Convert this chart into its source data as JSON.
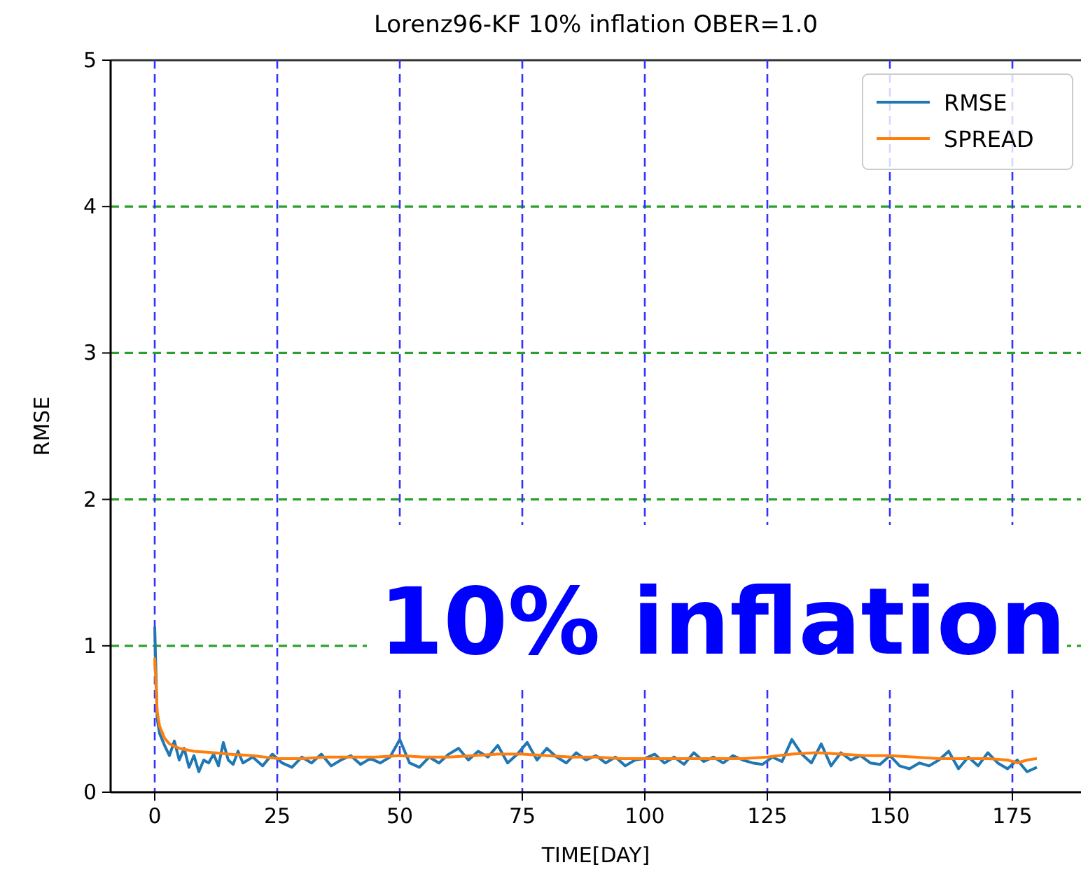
{
  "chart_data": {
    "type": "line",
    "title": "Lorenz96-KF 10% inflation OBER=1.0",
    "xlabel": "TIME[DAY]",
    "ylabel": "RMSE",
    "xlim": [
      -9,
      189
    ],
    "ylim": [
      0,
      5
    ],
    "xticks": [
      0,
      25,
      50,
      75,
      100,
      125,
      150,
      175
    ],
    "yticks": [
      0,
      1,
      2,
      3,
      4,
      5
    ],
    "legend": "top right",
    "annotations": [
      "10% inflation"
    ],
    "ref_lines": [
      {
        "axis": "y",
        "value": 1,
        "color": "#2ca02c",
        "line_style": "dashed"
      },
      {
        "axis": "y",
        "value": 2,
        "color": "#2ca02c",
        "line_style": "dashed"
      },
      {
        "axis": "y",
        "value": 3,
        "color": "#2ca02c",
        "line_style": "dashed"
      },
      {
        "axis": "y",
        "value": 4,
        "color": "#2ca02c",
        "line_style": "dashed"
      },
      {
        "axis": "x",
        "value": 0,
        "color": "#3333ff",
        "line_style": "dashed"
      },
      {
        "axis": "x",
        "value": 25,
        "color": "#3333ff",
        "line_style": "dashed"
      },
      {
        "axis": "x",
        "value": 50,
        "color": "#3333ff",
        "line_style": "dashed"
      },
      {
        "axis": "x",
        "value": 75,
        "color": "#3333ff",
        "line_style": "dashed"
      },
      {
        "axis": "x",
        "value": 100,
        "color": "#3333ff",
        "line_style": "dashed"
      },
      {
        "axis": "x",
        "value": 125,
        "color": "#3333ff",
        "line_style": "dashed"
      },
      {
        "axis": "x",
        "value": 150,
        "color": "#3333ff",
        "line_style": "dashed"
      },
      {
        "axis": "x",
        "value": 175,
        "color": "#3333ff",
        "line_style": "dashed"
      }
    ],
    "series": [
      {
        "name": "RMSE",
        "color": "#1f77b4",
        "x": [
          0,
          0.5,
          1,
          2,
          3,
          4,
          5,
          6,
          7,
          8,
          9,
          10,
          11,
          12,
          13,
          14,
          15,
          16,
          17,
          18,
          20,
          22,
          24,
          26,
          28,
          30,
          32,
          34,
          36,
          38,
          40,
          42,
          44,
          46,
          48,
          50,
          52,
          54,
          56,
          58,
          60,
          62,
          64,
          66,
          68,
          70,
          72,
          74,
          76,
          78,
          80,
          82,
          84,
          86,
          88,
          90,
          92,
          94,
          96,
          98,
          100,
          102,
          104,
          106,
          108,
          110,
          112,
          114,
          116,
          118,
          120,
          122,
          124,
          126,
          128,
          130,
          132,
          134,
          136,
          138,
          140,
          142,
          144,
          146,
          148,
          150,
          152,
          154,
          156,
          158,
          160,
          162,
          164,
          166,
          168,
          170,
          172,
          174,
          176,
          178,
          180
        ],
        "values": [
          1.13,
          0.5,
          0.4,
          0.32,
          0.25,
          0.35,
          0.22,
          0.3,
          0.17,
          0.25,
          0.14,
          0.22,
          0.2,
          0.26,
          0.18,
          0.34,
          0.22,
          0.19,
          0.28,
          0.2,
          0.24,
          0.18,
          0.26,
          0.2,
          0.17,
          0.24,
          0.2,
          0.26,
          0.18,
          0.22,
          0.25,
          0.19,
          0.23,
          0.2,
          0.24,
          0.36,
          0.2,
          0.17,
          0.24,
          0.2,
          0.26,
          0.3,
          0.22,
          0.28,
          0.24,
          0.32,
          0.2,
          0.26,
          0.34,
          0.22,
          0.3,
          0.24,
          0.2,
          0.27,
          0.22,
          0.25,
          0.2,
          0.24,
          0.18,
          0.22,
          0.23,
          0.26,
          0.2,
          0.24,
          0.19,
          0.27,
          0.21,
          0.24,
          0.2,
          0.25,
          0.22,
          0.2,
          0.19,
          0.24,
          0.21,
          0.36,
          0.26,
          0.2,
          0.33,
          0.18,
          0.27,
          0.22,
          0.25,
          0.2,
          0.19,
          0.25,
          0.18,
          0.16,
          0.2,
          0.18,
          0.22,
          0.28,
          0.16,
          0.24,
          0.18,
          0.27,
          0.2,
          0.16,
          0.22,
          0.14,
          0.17
        ]
      },
      {
        "name": "SPREAD",
        "color": "#ff7f0e",
        "x": [
          0,
          0.5,
          1,
          2,
          3,
          5,
          8,
          12,
          15,
          20,
          25,
          30,
          35,
          40,
          45,
          50,
          55,
          60,
          65,
          70,
          75,
          80,
          85,
          90,
          95,
          100,
          105,
          110,
          115,
          120,
          125,
          130,
          135,
          140,
          145,
          150,
          155,
          160,
          165,
          170,
          174,
          176,
          178,
          180
        ],
        "values": [
          0.92,
          0.55,
          0.45,
          0.37,
          0.33,
          0.3,
          0.28,
          0.27,
          0.26,
          0.25,
          0.23,
          0.23,
          0.24,
          0.24,
          0.24,
          0.25,
          0.24,
          0.24,
          0.25,
          0.26,
          0.26,
          0.25,
          0.24,
          0.24,
          0.23,
          0.23,
          0.23,
          0.23,
          0.23,
          0.23,
          0.24,
          0.26,
          0.27,
          0.26,
          0.25,
          0.25,
          0.24,
          0.23,
          0.23,
          0.23,
          0.22,
          0.2,
          0.22,
          0.23
        ]
      }
    ]
  }
}
